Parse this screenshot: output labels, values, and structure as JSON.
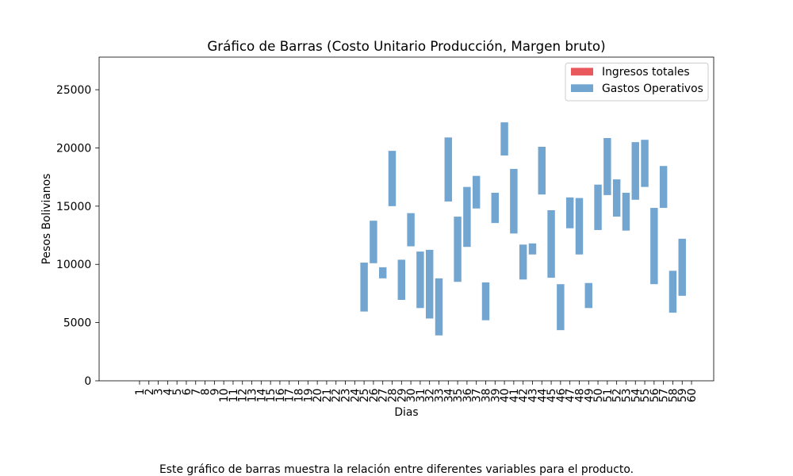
{
  "chart_data": {
    "type": "bar",
    "title": "Gráfico de Barras (Costo Unitario Producción, Margen bruto)",
    "xlabel": "Dias",
    "ylabel": "Pesos Bolivianos",
    "ylim": [
      0,
      27800
    ],
    "yticks": [
      0,
      5000,
      10000,
      15000,
      20000,
      25000
    ],
    "grid": false,
    "legend_position": "top-right",
    "categories": [
      "1",
      "2",
      "3",
      "4",
      "5",
      "6",
      "7",
      "8",
      "9",
      "10",
      "11",
      "12",
      "13",
      "14",
      "15",
      "16",
      "17",
      "18",
      "19",
      "20",
      "21",
      "22",
      "23",
      "24",
      "25",
      "26",
      "27",
      "28",
      "29",
      "30",
      "31",
      "32",
      "33",
      "34",
      "35",
      "36",
      "37",
      "38",
      "39",
      "40",
      "41",
      "42",
      "43",
      "44",
      "45",
      "46",
      "47",
      "48",
      "49",
      "50",
      "51",
      "52",
      "53",
      "54",
      "55",
      "56",
      "57",
      "58",
      "59",
      "60"
    ],
    "series": [
      {
        "name": "Ingresos totales",
        "color": "#e8585c",
        "ranges": []
      },
      {
        "name": "Gastos Operativos",
        "color": "#72a6d1",
        "ranges": [
          null,
          null,
          null,
          null,
          null,
          null,
          null,
          null,
          null,
          null,
          null,
          null,
          null,
          null,
          null,
          null,
          null,
          null,
          null,
          null,
          null,
          null,
          null,
          null,
          [
            5950,
            10150
          ],
          [
            10100,
            13750
          ],
          [
            8800,
            9750
          ],
          [
            15000,
            19750
          ],
          [
            6950,
            10400
          ],
          [
            11550,
            14400
          ],
          [
            6250,
            11100
          ],
          [
            5350,
            11250
          ],
          [
            3900,
            8800
          ],
          [
            15400,
            20900
          ],
          [
            8500,
            14100
          ],
          [
            11500,
            16650
          ],
          [
            14800,
            17600
          ],
          [
            5200,
            8450
          ],
          [
            13550,
            16150
          ],
          [
            19350,
            22200
          ],
          [
            12650,
            18200
          ],
          [
            8700,
            11700
          ],
          [
            10850,
            11800
          ],
          [
            16000,
            20100
          ],
          [
            8850,
            14650
          ],
          [
            4350,
            8300
          ],
          [
            13100,
            15750
          ],
          [
            10850,
            15700
          ],
          [
            6250,
            8400
          ],
          [
            12950,
            16850
          ],
          [
            15950,
            20850
          ],
          [
            14100,
            17300
          ],
          [
            12900,
            16150
          ],
          [
            15550,
            20500
          ],
          [
            16650,
            20700
          ],
          [
            8300,
            14850
          ],
          [
            14850,
            18450
          ],
          [
            5850,
            9450
          ],
          [
            7300,
            12200
          ],
          null
        ]
      }
    ]
  },
  "caption": "Este gráfico de barras muestra la relación entre diferentes variables para el producto."
}
